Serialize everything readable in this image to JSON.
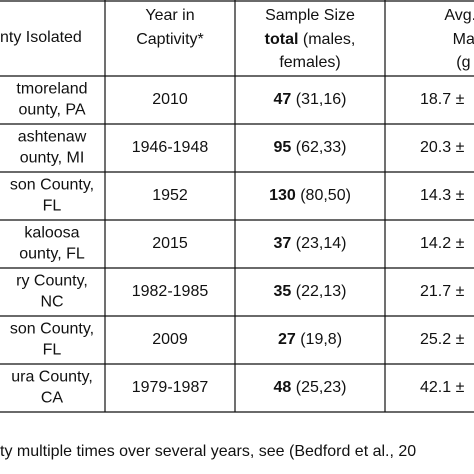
{
  "header": {
    "county": "nty Isolated",
    "year": [
      "Year in",
      "Captivity*"
    ],
    "sample": {
      "line1": "Sample Size",
      "bold": "total",
      "rest": "(males,",
      "line3": "females)"
    },
    "weight": [
      "Avg. W",
      "Male",
      "(g ±"
    ]
  },
  "rows": [
    {
      "county": [
        "tmoreland",
        "ounty, PA"
      ],
      "year": "2010",
      "total": "47",
      "sexes": "(31,16)",
      "weight": "18.7 ±"
    },
    {
      "county": [
        "ashtenaw",
        "ounty, MI"
      ],
      "year": "1946-1948",
      "total": "95",
      "sexes": "(62,33)",
      "weight": "20.3 ±"
    },
    {
      "county": [
        "son County,",
        "FL"
      ],
      "year": "1952",
      "total": "130",
      "sexes": "(80,50)",
      "weight": "14.3 ±"
    },
    {
      "county": [
        "kaloosa",
        "ounty, FL"
      ],
      "year": "2015",
      "total": "37",
      "sexes": "(23,14)",
      "weight": "14.2 ±"
    },
    {
      "county": [
        "ry County,",
        "NC"
      ],
      "year": "1982-1985",
      "total": "35",
      "sexes": "(22,13)",
      "weight": "21.7 ±"
    },
    {
      "county": [
        "son County,",
        "FL"
      ],
      "year": "2009",
      "total": "27",
      "sexes": "(19,8)",
      "weight": "25.2 ±"
    },
    {
      "county": [
        "ura County,",
        "CA"
      ],
      "year": "1979-1987",
      "total": "48",
      "sexes": "(25,23)",
      "weight": "42.1 ±"
    }
  ],
  "footnote": "ty multiple times over several years, see (Bedford et al., 20"
}
